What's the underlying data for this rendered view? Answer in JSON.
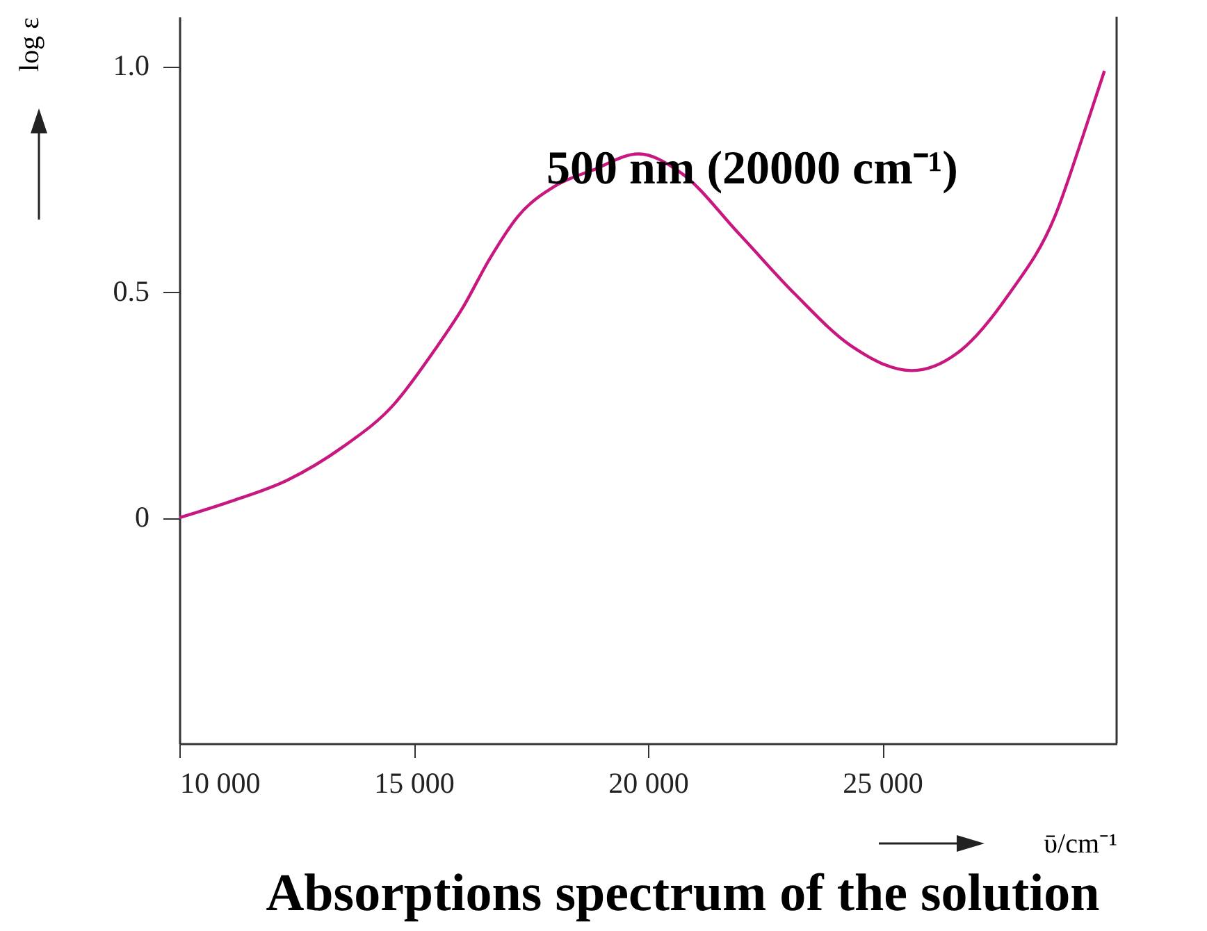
{
  "chart_data": {
    "type": "line",
    "title": "Absorptions spectrum of the solution",
    "xlabel": "ῡ/cm⁻¹",
    "ylabel": "log ε",
    "annotations": [
      "500 nm (20000 cm⁻¹)"
    ],
    "series": [
      {
        "color": "#c8177f",
        "x": [
          10000,
          11120,
          12300,
          13490,
          14560,
          15450,
          16040,
          16630,
          17220,
          18020,
          18820,
          19800,
          20690,
          21960,
          23140,
          24330,
          25630,
          26690,
          27700,
          28680,
          29270,
          29740
        ],
        "values": [
          0,
          0.037,
          0.083,
          0.157,
          0.249,
          0.372,
          0.464,
          0.575,
          0.667,
          0.735,
          0.77,
          0.806,
          0.765,
          0.627,
          0.495,
          0.381,
          0.326,
          0.372,
          0.495,
          0.667,
          0.842,
          0.99
        ]
      }
    ],
    "xlim": [
      10000,
      30000
    ],
    "ylim": [
      -0.5,
      1.11
    ],
    "xticks": [
      {
        "value": 10000,
        "label": "10 000"
      },
      {
        "value": 15000,
        "label": "15 000"
      },
      {
        "value": 20000,
        "label": "20 000"
      },
      {
        "value": 25000,
        "label": "25 000"
      }
    ],
    "yticks": [
      0,
      0.5,
      {
        "value": 1,
        "label": "1.0"
      }
    ],
    "grid": false,
    "marker": "none",
    "line_style": "solid"
  }
}
